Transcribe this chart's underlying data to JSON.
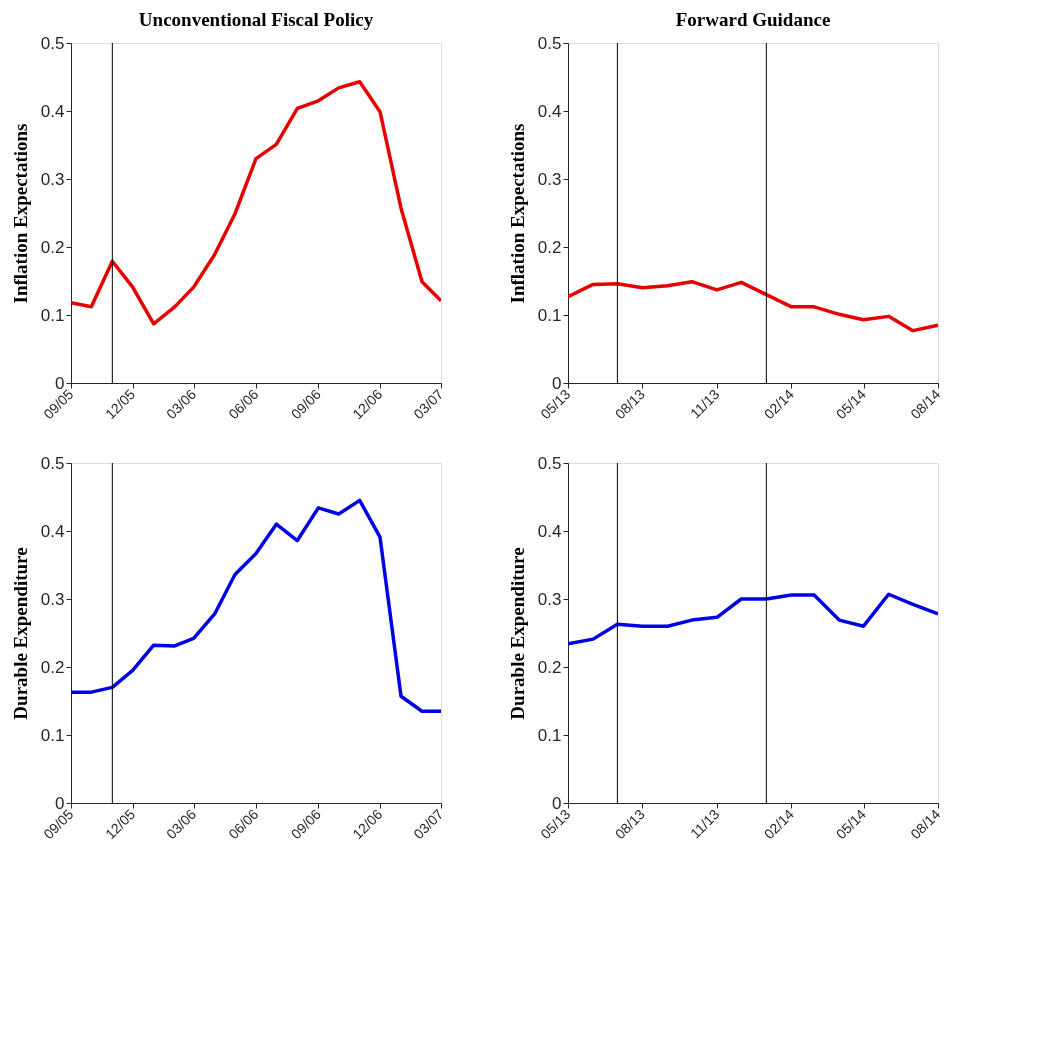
{
  "chart_data": [
    {
      "type": "line",
      "title": "Unconventional Fiscal Policy",
      "ylabel": "Inflation Expectations",
      "grid": false,
      "line_style": "solid",
      "x": [
        "2005-09",
        "2005-10",
        "2005-11",
        "2005-12",
        "2006-01",
        "2006-02",
        "2006-03",
        "2006-04",
        "2006-05",
        "2006-06",
        "2006-07",
        "2006-08",
        "2006-09",
        "2006-10",
        "2006-11",
        "2006-12",
        "2007-01",
        "2007-02",
        "2007-03"
      ],
      "series": [
        {
          "color": "#e60000",
          "values": [
            0.118,
            0.112,
            0.179,
            0.141,
            0.087,
            0.112,
            0.141,
            0.189,
            0.249,
            0.33,
            0.351,
            0.404,
            0.415,
            0.434,
            0.443,
            0.399,
            0.257,
            0.149,
            0.121
          ]
        }
      ],
      "xlim": [
        "2005-09",
        "2007-03"
      ],
      "xticks": [
        {
          "value": "2005-09",
          "label": "09/05"
        },
        {
          "value": "2005-12",
          "label": "12/05"
        },
        {
          "value": "2006-03",
          "label": "03/06"
        },
        {
          "value": "2006-06",
          "label": "06/06"
        },
        {
          "value": "2006-09",
          "label": "09/06"
        },
        {
          "value": "2006-12",
          "label": "12/06"
        },
        {
          "value": "2007-03",
          "label": "03/07"
        }
      ],
      "ylim": [
        0,
        0.5
      ],
      "yticks": [
        0,
        0.1,
        0.2,
        0.3,
        0.4,
        0.5
      ],
      "ref_lines": [
        {
          "axis": "x",
          "value": "2005-11",
          "color": "#000000"
        }
      ]
    },
    {
      "type": "line",
      "title": "Forward Guidance",
      "ylabel": "Inflation Expectations",
      "grid": false,
      "line_style": "solid",
      "x": [
        "2013-05",
        "2013-06",
        "2013-07",
        "2013-08",
        "2013-09",
        "2013-10",
        "2013-11",
        "2013-12",
        "2014-01",
        "2014-02",
        "2014-03",
        "2014-04",
        "2014-05",
        "2014-06",
        "2014-07",
        "2014-08"
      ],
      "series": [
        {
          "color": "#e60000",
          "values": [
            0.127,
            0.145,
            0.146,
            0.14,
            0.143,
            0.149,
            0.137,
            0.148,
            0.13,
            0.112,
            0.112,
            0.101,
            0.093,
            0.098,
            0.077,
            0.085
          ]
        }
      ],
      "xlim": [
        "2013-05",
        "2014-08"
      ],
      "xticks": [
        {
          "value": "2013-05",
          "label": "05/13"
        },
        {
          "value": "2013-08",
          "label": "08/13"
        },
        {
          "value": "2013-11",
          "label": "11/13"
        },
        {
          "value": "2014-02",
          "label": "02/14"
        },
        {
          "value": "2014-05",
          "label": "05/14"
        },
        {
          "value": "2014-08",
          "label": "08/14"
        }
      ],
      "ylim": [
        0,
        0.5
      ],
      "yticks": [
        0,
        0.1,
        0.2,
        0.3,
        0.4,
        0.5
      ],
      "ref_lines": [
        {
          "axis": "x",
          "value": "2013-07",
          "color": "#000000"
        },
        {
          "axis": "x",
          "value": "2014-01",
          "color": "#000000"
        }
      ]
    },
    {
      "type": "line",
      "ylabel": "Durable Expenditure",
      "grid": false,
      "line_style": "solid",
      "x": [
        "2005-09",
        "2005-10",
        "2005-11",
        "2005-12",
        "2006-01",
        "2006-02",
        "2006-03",
        "2006-04",
        "2006-05",
        "2006-06",
        "2006-07",
        "2006-08",
        "2006-09",
        "2006-10",
        "2006-11",
        "2006-12",
        "2007-01",
        "2007-02",
        "2007-03"
      ],
      "series": [
        {
          "color": "#0000e6",
          "values": [
            0.163,
            0.163,
            0.17,
            0.195,
            0.232,
            0.231,
            0.242,
            0.278,
            0.336,
            0.367,
            0.41,
            0.386,
            0.434,
            0.425,
            0.445,
            0.391,
            0.157,
            0.135,
            0.135
          ]
        }
      ],
      "xlim": [
        "2005-09",
        "2007-03"
      ],
      "xticks": [
        {
          "value": "2005-09",
          "label": "09/05"
        },
        {
          "value": "2005-12",
          "label": "12/05"
        },
        {
          "value": "2006-03",
          "label": "03/06"
        },
        {
          "value": "2006-06",
          "label": "06/06"
        },
        {
          "value": "2006-09",
          "label": "09/06"
        },
        {
          "value": "2006-12",
          "label": "12/06"
        },
        {
          "value": "2007-03",
          "label": "03/07"
        }
      ],
      "ylim": [
        0,
        0.5
      ],
      "yticks": [
        0,
        0.1,
        0.2,
        0.3,
        0.4,
        0.5
      ],
      "ref_lines": [
        {
          "axis": "x",
          "value": "2005-11",
          "color": "#000000"
        }
      ]
    },
    {
      "type": "line",
      "ylabel": "Durable Expenditure",
      "grid": false,
      "line_style": "solid",
      "x": [
        "2013-05",
        "2013-06",
        "2013-07",
        "2013-08",
        "2013-09",
        "2013-10",
        "2013-11",
        "2013-12",
        "2014-01",
        "2014-02",
        "2014-03",
        "2014-04",
        "2014-05",
        "2014-06",
        "2014-07",
        "2014-08"
      ],
      "series": [
        {
          "color": "#0000e6",
          "values": [
            0.234,
            0.241,
            0.263,
            0.26,
            0.26,
            0.269,
            0.273,
            0.3,
            0.3,
            0.306,
            0.306,
            0.269,
            0.26,
            0.307,
            0.292,
            0.278
          ]
        }
      ],
      "xlim": [
        "2013-05",
        "2014-08"
      ],
      "xticks": [
        {
          "value": "2013-05",
          "label": "05/13"
        },
        {
          "value": "2013-08",
          "label": "08/13"
        },
        {
          "value": "2013-11",
          "label": "11/13"
        },
        {
          "value": "2014-02",
          "label": "02/14"
        },
        {
          "value": "2014-05",
          "label": "05/14"
        },
        {
          "value": "2014-08",
          "label": "08/14"
        }
      ],
      "ylim": [
        0,
        0.5
      ],
      "yticks": [
        0,
        0.1,
        0.2,
        0.3,
        0.4,
        0.5
      ],
      "ref_lines": [
        {
          "axis": "x",
          "value": "2013-07",
          "color": "#000000"
        },
        {
          "axis": "x",
          "value": "2014-01",
          "color": "#000000"
        }
      ]
    }
  ]
}
